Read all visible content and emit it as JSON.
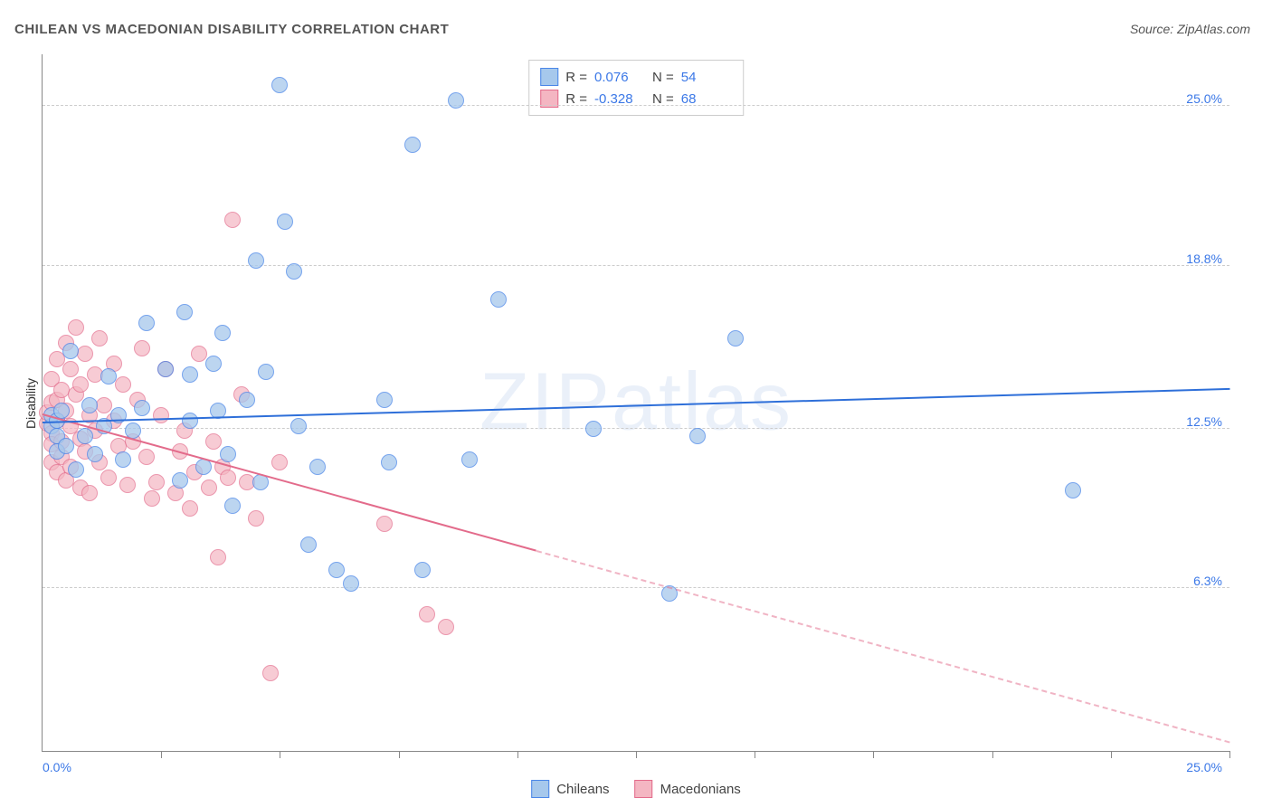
{
  "title": "CHILEAN VS MACEDONIAN DISABILITY CORRELATION CHART",
  "source_label": "Source: ZipAtlas.com",
  "ylabel": "Disability",
  "watermark": "ZIPatlas",
  "chart": {
    "type": "scatter",
    "background_color": "#ffffff",
    "grid_color": "#cccccc",
    "axis_color": "#888888",
    "xlim": [
      0,
      25
    ],
    "ylim": [
      0,
      27
    ],
    "ytick_values": [
      6.3,
      12.5,
      18.8,
      25.0
    ],
    "ytick_labels": [
      "6.3%",
      "12.5%",
      "18.8%",
      "25.0%"
    ],
    "xtick_values": [
      2.5,
      5,
      7.5,
      10,
      12.5,
      15,
      17.5,
      20,
      22.5,
      25
    ],
    "x_origin_label": "0.0%",
    "x_max_label": "25.0%",
    "ytick_label_color": "#3b78e7",
    "xtick_label_color": "#3b78e7",
    "marker_radius": 9,
    "marker_border_width": 1.5,
    "label_fontsize": 14,
    "title_fontsize": 15
  },
  "series": {
    "chileans": {
      "label": "Chileans",
      "fill": "#a6c8ec",
      "stroke": "#4a86e8",
      "opacity": 0.75,
      "trend": {
        "color": "#2e6fd9",
        "y_at_x0": 12.7,
        "y_at_xmax": 14.0,
        "solid_until_x": 25,
        "width": 2
      },
      "R": "0.076",
      "N": "54",
      "points": [
        [
          0.2,
          12.6
        ],
        [
          0.2,
          13.0
        ],
        [
          0.3,
          12.2
        ],
        [
          0.3,
          12.8
        ],
        [
          0.3,
          11.6
        ],
        [
          0.4,
          13.2
        ],
        [
          0.5,
          11.8
        ],
        [
          0.6,
          15.5
        ],
        [
          0.7,
          10.9
        ],
        [
          0.9,
          12.2
        ],
        [
          1.0,
          13.4
        ],
        [
          1.1,
          11.5
        ],
        [
          1.3,
          12.6
        ],
        [
          1.4,
          14.5
        ],
        [
          1.6,
          13.0
        ],
        [
          1.7,
          11.3
        ],
        [
          1.9,
          12.4
        ],
        [
          2.1,
          13.3
        ],
        [
          2.2,
          16.6
        ],
        [
          2.6,
          14.8
        ],
        [
          2.9,
          10.5
        ],
        [
          3.0,
          17.0
        ],
        [
          3.1,
          12.8
        ],
        [
          3.1,
          14.6
        ],
        [
          3.4,
          11.0
        ],
        [
          3.6,
          15.0
        ],
        [
          3.7,
          13.2
        ],
        [
          3.8,
          16.2
        ],
        [
          3.9,
          11.5
        ],
        [
          4.0,
          9.5
        ],
        [
          4.3,
          13.6
        ],
        [
          4.5,
          19.0
        ],
        [
          4.6,
          10.4
        ],
        [
          4.7,
          14.7
        ],
        [
          5.0,
          25.8
        ],
        [
          5.1,
          20.5
        ],
        [
          5.3,
          18.6
        ],
        [
          5.4,
          12.6
        ],
        [
          5.6,
          8.0
        ],
        [
          5.8,
          11.0
        ],
        [
          6.2,
          7.0
        ],
        [
          6.5,
          6.5
        ],
        [
          7.2,
          13.6
        ],
        [
          7.3,
          11.2
        ],
        [
          7.8,
          23.5
        ],
        [
          8.0,
          7.0
        ],
        [
          8.7,
          25.2
        ],
        [
          9.0,
          11.3
        ],
        [
          9.6,
          17.5
        ],
        [
          11.6,
          12.5
        ],
        [
          13.2,
          6.1
        ],
        [
          13.8,
          12.2
        ],
        [
          14.6,
          16.0
        ],
        [
          21.7,
          10.1
        ]
      ]
    },
    "macedonians": {
      "label": "Macedonians",
      "fill": "#f4b6c2",
      "stroke": "#e36b8b",
      "opacity": 0.7,
      "trend": {
        "color": "#e36b8b",
        "y_at_x0": 13.0,
        "y_at_xmax": 0.3,
        "solid_until_x": 10.4,
        "width": 2
      },
      "R": "-0.328",
      "N": "68",
      "points": [
        [
          0.1,
          12.7
        ],
        [
          0.1,
          13.1
        ],
        [
          0.2,
          12.3
        ],
        [
          0.2,
          11.9
        ],
        [
          0.2,
          13.5
        ],
        [
          0.2,
          14.4
        ],
        [
          0.2,
          11.2
        ],
        [
          0.3,
          12.8
        ],
        [
          0.3,
          15.2
        ],
        [
          0.3,
          10.8
        ],
        [
          0.3,
          13.6
        ],
        [
          0.4,
          12.0
        ],
        [
          0.4,
          14.0
        ],
        [
          0.4,
          11.4
        ],
        [
          0.5,
          13.2
        ],
        [
          0.5,
          15.8
        ],
        [
          0.5,
          10.5
        ],
        [
          0.6,
          12.6
        ],
        [
          0.6,
          14.8
        ],
        [
          0.6,
          11.0
        ],
        [
          0.7,
          13.8
        ],
        [
          0.7,
          16.4
        ],
        [
          0.8,
          12.1
        ],
        [
          0.8,
          10.2
        ],
        [
          0.8,
          14.2
        ],
        [
          0.9,
          11.6
        ],
        [
          0.9,
          15.4
        ],
        [
          1.0,
          13.0
        ],
        [
          1.0,
          10.0
        ],
        [
          1.1,
          12.4
        ],
        [
          1.1,
          14.6
        ],
        [
          1.2,
          11.2
        ],
        [
          1.2,
          16.0
        ],
        [
          1.3,
          13.4
        ],
        [
          1.4,
          10.6
        ],
        [
          1.5,
          12.8
        ],
        [
          1.5,
          15.0
        ],
        [
          1.6,
          11.8
        ],
        [
          1.7,
          14.2
        ],
        [
          1.8,
          10.3
        ],
        [
          1.9,
          12.0
        ],
        [
          2.0,
          13.6
        ],
        [
          2.1,
          15.6
        ],
        [
          2.2,
          11.4
        ],
        [
          2.3,
          9.8
        ],
        [
          2.4,
          10.4
        ],
        [
          2.5,
          13.0
        ],
        [
          2.6,
          14.8
        ],
        [
          2.8,
          10.0
        ],
        [
          2.9,
          11.6
        ],
        [
          3.0,
          12.4
        ],
        [
          3.1,
          9.4
        ],
        [
          3.2,
          10.8
        ],
        [
          3.3,
          15.4
        ],
        [
          3.5,
          10.2
        ],
        [
          3.6,
          12.0
        ],
        [
          3.7,
          7.5
        ],
        [
          3.8,
          11.0
        ],
        [
          3.9,
          10.6
        ],
        [
          4.0,
          20.6
        ],
        [
          4.2,
          13.8
        ],
        [
          4.3,
          10.4
        ],
        [
          4.5,
          9.0
        ],
        [
          4.8,
          3.0
        ],
        [
          5.0,
          11.2
        ],
        [
          7.2,
          8.8
        ],
        [
          8.1,
          5.3
        ],
        [
          8.5,
          4.8
        ]
      ]
    }
  },
  "legend_top": {
    "r_prefix": "R =",
    "n_prefix": "N ="
  }
}
